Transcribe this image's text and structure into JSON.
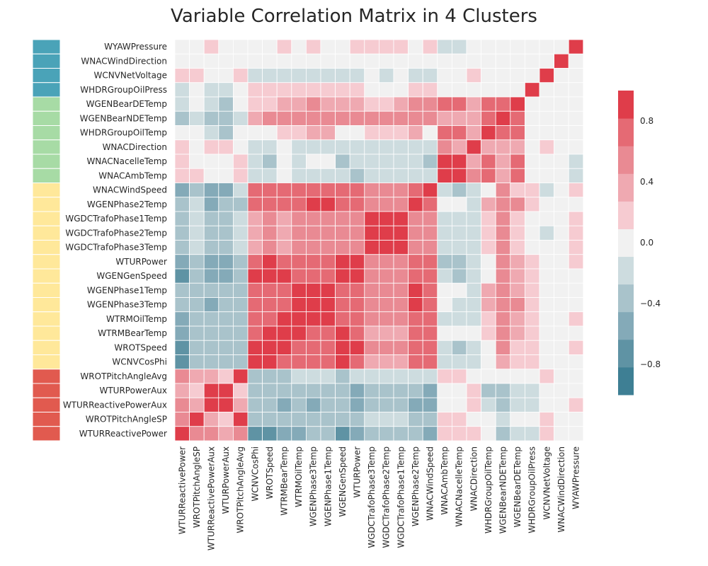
{
  "chart_data": {
    "type": "heatmap",
    "title": "Variable Correlation Matrix in 4 Clusters",
    "row_labels": [
      "WYAWPressure",
      "WNACWindDirection",
      "WCNVNetVoltage",
      "WHDRGroupOilPress",
      "WGENBearDETemp",
      "WGENBearNDETemp",
      "WHDRGroupOilTemp",
      "WNACDirection",
      "WNACNacelleTemp",
      "WNACAmbTemp",
      "WNACWindSpeed",
      "WGENPhase2Temp",
      "WGDCTrafoPhase1Temp",
      "WGDCTrafoPhase2Temp",
      "WGDCTrafoPhase3Temp",
      "WTURPower",
      "WGENGenSpeed",
      "WGENPhase1Temp",
      "WGENPhase3Temp",
      "WTRMOilTemp",
      "WTRMBearTemp",
      "WROTSpeed",
      "WCNVCosPhi",
      "WROTPitchAngleAvg",
      "WTURPowerAux",
      "WTURReactivePowerAux",
      "WROTPitchAngleSP",
      "WTURReactivePower"
    ],
    "col_labels": [
      "WTURReactivePower",
      "WROTPitchAngleSP",
      "WTURReactivePowerAux",
      "WTURPowerAux",
      "WROTPitchAngleAvg",
      "WCNVCosPhi",
      "WROTSpeed",
      "WTRMBearTemp",
      "WTRMOilTemp",
      "WGENPhase3Temp",
      "WGENPhase1Temp",
      "WGENGenSpeed",
      "WTURPower",
      "WGDCTrafoPhase3Temp",
      "WGDCTrafoPhase2Temp",
      "WGDCTrafoPhase1Temp",
      "WGENPhase2Temp",
      "WNACWindSpeed",
      "WNACAmbTemp",
      "WNACNacelleTemp",
      "WNACDirection",
      "WHDRGroupOilTemp",
      "WGENBearNDETemp",
      "WGENBearDETemp",
      "WHDRGroupOilPress",
      "WCNVNetVoltage",
      "WNACWindDirection",
      "WYAWPressure"
    ],
    "row_clusters": [
      1,
      1,
      1,
      1,
      2,
      2,
      2,
      2,
      2,
      2,
      3,
      3,
      3,
      3,
      3,
      3,
      3,
      3,
      3,
      3,
      3,
      3,
      3,
      4,
      4,
      4,
      4,
      4
    ],
    "cluster_colors": {
      "1": "#4aa3b8",
      "2": "#a7dba5",
      "3": "#ffe89a",
      "4": "#e15a4f"
    },
    "vmin": -1,
    "vmax": 1,
    "colorbar_ticks": [
      0.8,
      0.4,
      0.0,
      -0.4,
      -0.8
    ],
    "colorbar_tick_labels": [
      "0.8",
      "0.4",
      "0.0",
      "−0.4",
      "−0.8"
    ],
    "colorbar_colors": [
      "#3e7f94",
      "#5f93a4",
      "#84aab8",
      "#a9c3cb",
      "#cddcdf",
      "#f1f1f1",
      "#f6cbd1",
      "#efa9b1",
      "#e98a93",
      "#e56a74",
      "#df3d4a"
    ],
    "values": [
      [
        0,
        0,
        0.2,
        0,
        0,
        0,
        0,
        0.2,
        0,
        0.2,
        0,
        0,
        0.2,
        0.2,
        0.2,
        0.2,
        0,
        0.2,
        -0.2,
        -0.2,
        0,
        0,
        0,
        0,
        0,
        0,
        0,
        1
      ],
      [
        0,
        0,
        0,
        0,
        0,
        0,
        0,
        0,
        0,
        0,
        0,
        0,
        0,
        0,
        0,
        0,
        0,
        0,
        0,
        0,
        0,
        0,
        0,
        0,
        0,
        0,
        1,
        0
      ],
      [
        0.2,
        0.2,
        0,
        0,
        0.2,
        -0.2,
        -0.2,
        -0.2,
        -0.2,
        -0.2,
        -0.2,
        -0.2,
        -0.2,
        0,
        -0.2,
        0,
        -0.2,
        -0.2,
        0,
        0,
        0.2,
        0,
        0,
        0,
        0,
        1,
        0,
        0
      ],
      [
        -0.2,
        0,
        -0.2,
        -0.2,
        0,
        0.2,
        0.2,
        0.2,
        0.2,
        0.2,
        0.2,
        0.2,
        0.2,
        0,
        0,
        0,
        0.2,
        0.2,
        0,
        0,
        0,
        0,
        0,
        0,
        1,
        0,
        0,
        0
      ],
      [
        -0.2,
        0,
        -0.2,
        -0.3,
        0,
        0.2,
        0.2,
        0.4,
        0.4,
        0.5,
        0.4,
        0.4,
        0.4,
        0.2,
        0.2,
        0.3,
        0.5,
        0.5,
        0.7,
        0.7,
        0.3,
        0.7,
        0.8,
        1,
        0,
        0,
        0,
        0
      ],
      [
        -0.3,
        -0.2,
        -0.3,
        -0.3,
        -0.2,
        0.4,
        0.5,
        0.5,
        0.6,
        0.6,
        0.6,
        0.5,
        0.5,
        0.5,
        0.5,
        0.5,
        0.6,
        0.6,
        0.4,
        0.4,
        0.3,
        0.7,
        1,
        0.8,
        0,
        0,
        0,
        0
      ],
      [
        0,
        0,
        -0.2,
        -0.3,
        0,
        0,
        0,
        0.2,
        0.2,
        0.3,
        0.3,
        0,
        0,
        0.2,
        0.2,
        0.2,
        0.3,
        0,
        0.7,
        0.8,
        0.4,
        1,
        0.7,
        0.7,
        0,
        0,
        0,
        0
      ],
      [
        0.2,
        0,
        0.2,
        0.2,
        0,
        -0.2,
        -0.2,
        0,
        -0.2,
        -0.2,
        -0.2,
        -0.2,
        -0.2,
        -0.2,
        -0.2,
        -0.2,
        -0.2,
        -0.2,
        0.5,
        0.4,
        1,
        0.4,
        0.3,
        0.3,
        0,
        0.2,
        0,
        0
      ],
      [
        0.2,
        0,
        0,
        0,
        0.2,
        -0.2,
        -0.3,
        0,
        -0.2,
        0,
        0,
        -0.3,
        -0.2,
        -0.2,
        -0.2,
        -0.2,
        -0.2,
        -0.3,
        0.9,
        1,
        0.4,
        0.8,
        0.4,
        0.7,
        0,
        0,
        0,
        -0.2
      ],
      [
        0.2,
        0.2,
        0,
        0,
        0.2,
        -0.2,
        -0.2,
        0,
        -0.2,
        -0.2,
        -0.2,
        -0.2,
        -0.3,
        -0.2,
        -0.2,
        -0.2,
        -0.2,
        -0.2,
        1,
        0.9,
        0.5,
        0.7,
        0.4,
        0.7,
        0,
        0,
        0,
        -0.2
      ],
      [
        -0.6,
        -0.3,
        -0.6,
        -0.6,
        -0.2,
        0.7,
        0.7,
        0.7,
        0.7,
        0.7,
        0.7,
        0.8,
        0.8,
        0.6,
        0.6,
        0.6,
        0.8,
        1,
        -0.2,
        -0.3,
        -0.2,
        0,
        0.6,
        0.2,
        0.2,
        -0.2,
        0,
        0.2
      ],
      [
        -0.4,
        -0.2,
        -0.5,
        -0.4,
        -0.3,
        0.7,
        0.7,
        0.8,
        0.8,
        0.9,
        0.9,
        0.7,
        0.7,
        0.6,
        0.6,
        0.6,
        1,
        0.8,
        0,
        0,
        -0.2,
        0.3,
        0.6,
        0.5,
        0.2,
        0,
        0,
        0
      ],
      [
        -0.3,
        -0.2,
        -0.4,
        -0.4,
        -0.2,
        0.4,
        0.5,
        0.4,
        0.5,
        0.5,
        0.5,
        0.5,
        0.6,
        0.9,
        0.9,
        1,
        0.6,
        0.6,
        -0.2,
        -0.2,
        -0.2,
        0.2,
        0.5,
        0.2,
        0,
        0,
        0,
        0.2
      ],
      [
        -0.3,
        -0.2,
        -0.4,
        -0.4,
        -0.2,
        0.4,
        0.5,
        0.4,
        0.5,
        0.6,
        0.6,
        0.5,
        0.6,
        0.9,
        1,
        0.9,
        0.6,
        0.6,
        -0.2,
        -0.2,
        -0.2,
        0.2,
        0.5,
        0.2,
        0,
        -0.2,
        0,
        0.2
      ],
      [
        -0.3,
        -0.2,
        -0.4,
        -0.4,
        -0.2,
        0.4,
        0.5,
        0.4,
        0.5,
        0.6,
        0.6,
        0.5,
        0.6,
        1,
        0.9,
        0.9,
        0.6,
        0.6,
        -0.2,
        -0.2,
        -0.2,
        0.2,
        0.5,
        0.2,
        0,
        0,
        0,
        0.2
      ],
      [
        -0.5,
        -0.3,
        -0.5,
        -0.6,
        -0.3,
        0.7,
        0.9,
        0.8,
        0.8,
        0.8,
        0.8,
        0.9,
        1,
        0.6,
        0.6,
        0.6,
        0.7,
        0.8,
        -0.3,
        -0.3,
        -0.2,
        0,
        0.5,
        0.3,
        0.2,
        0,
        0,
        0.2
      ],
      [
        -0.8,
        -0.4,
        -0.5,
        -0.5,
        -0.4,
        0.9,
        0.9,
        0.9,
        0.8,
        0.8,
        0.8,
        1,
        0.9,
        0.5,
        0.5,
        0.5,
        0.7,
        0.8,
        -0.2,
        -0.3,
        -0.2,
        0,
        0.5,
        0.3,
        0.2,
        0,
        0,
        0
      ],
      [
        -0.4,
        -0.3,
        -0.4,
        -0.4,
        -0.3,
        0.7,
        0.8,
        0.8,
        0.9,
        0.9,
        1,
        0.8,
        0.8,
        0.6,
        0.6,
        0.5,
        0.9,
        0.7,
        0,
        0,
        -0.2,
        0.3,
        0.6,
        0.4,
        0.2,
        0,
        0,
        0
      ],
      [
        -0.4,
        -0.3,
        -0.5,
        -0.4,
        -0.3,
        0.7,
        0.8,
        0.8,
        0.9,
        1,
        0.9,
        0.8,
        0.8,
        0.6,
        0.6,
        0.5,
        0.9,
        0.7,
        0,
        -0.2,
        -0.2,
        0.3,
        0.6,
        0.5,
        0.2,
        0,
        0,
        0
      ],
      [
        -0.5,
        -0.3,
        -0.4,
        -0.4,
        -0.3,
        0.7,
        0.8,
        0.9,
        1,
        0.9,
        0.9,
        0.8,
        0.8,
        0.5,
        0.5,
        0.5,
        0.8,
        0.7,
        -0.2,
        -0.2,
        -0.2,
        0.2,
        0.6,
        0.4,
        0.2,
        0,
        0,
        0.2
      ],
      [
        -0.5,
        -0.3,
        -0.4,
        -0.4,
        -0.3,
        0.8,
        0.9,
        1,
        0.9,
        0.8,
        0.8,
        0.9,
        0.8,
        0.4,
        0.4,
        0.4,
        0.8,
        0.7,
        0,
        0,
        0,
        0.2,
        0.5,
        0.4,
        0.2,
        0,
        0,
        0
      ],
      [
        -0.7,
        -0.4,
        -0.4,
        -0.4,
        -0.3,
        0.9,
        1,
        0.9,
        0.8,
        0.8,
        0.8,
        0.9,
        0.9,
        0.5,
        0.5,
        0.5,
        0.7,
        0.7,
        -0.2,
        -0.3,
        -0.2,
        0,
        0.5,
        0.2,
        0.2,
        0,
        0,
        0.2
      ],
      [
        -0.7,
        -0.4,
        -0.4,
        -0.4,
        -0.3,
        1,
        0.9,
        0.8,
        0.7,
        0.7,
        0.7,
        0.9,
        0.7,
        0.4,
        0.4,
        0.4,
        0.7,
        0.7,
        -0.2,
        -0.2,
        -0.2,
        0,
        0.4,
        0.2,
        0.2,
        0,
        0,
        0
      ],
      [
        0.6,
        0.3,
        0.4,
        0.2,
        1,
        -0.3,
        -0.3,
        -0.3,
        -0.2,
        -0.2,
        -0.2,
        -0.3,
        -0.2,
        -0.2,
        -0.2,
        -0.2,
        -0.2,
        -0.2,
        0.2,
        0.2,
        0,
        0,
        0,
        0,
        0,
        0.2,
        0,
        0
      ],
      [
        0.3,
        0.2,
        0.9,
        1,
        0.2,
        -0.4,
        -0.4,
        -0.4,
        -0.4,
        -0.4,
        -0.4,
        -0.4,
        -0.5,
        -0.4,
        -0.4,
        -0.4,
        -0.4,
        -0.6,
        0,
        0,
        0.2,
        -0.3,
        -0.3,
        -0.2,
        -0.2,
        0,
        0,
        0
      ],
      [
        0.5,
        0.3,
        1,
        0.9,
        0.3,
        -0.4,
        -0.4,
        -0.5,
        -0.4,
        -0.5,
        -0.4,
        -0.4,
        -0.5,
        -0.4,
        -0.4,
        -0.4,
        -0.5,
        -0.6,
        0,
        0,
        0.2,
        -0.2,
        -0.4,
        -0.2,
        -0.2,
        0,
        0,
        0.2
      ],
      [
        0.6,
        1,
        0.3,
        0.2,
        0.9,
        -0.4,
        -0.4,
        -0.4,
        -0.3,
        -0.3,
        -0.3,
        -0.4,
        -0.3,
        -0.2,
        -0.2,
        -0.2,
        -0.3,
        -0.3,
        0.2,
        0.2,
        0,
        0,
        -0.2,
        0,
        0,
        0.2,
        0,
        0
      ],
      [
        1,
        0.6,
        0.5,
        0.3,
        0.6,
        -0.7,
        -0.7,
        -0.5,
        -0.5,
        -0.4,
        -0.4,
        -0.8,
        -0.5,
        -0.3,
        -0.3,
        -0.3,
        -0.4,
        -0.6,
        0.2,
        0.2,
        0.2,
        0,
        -0.3,
        -0.2,
        -0.2,
        0.2,
        0,
        0
      ]
    ]
  }
}
